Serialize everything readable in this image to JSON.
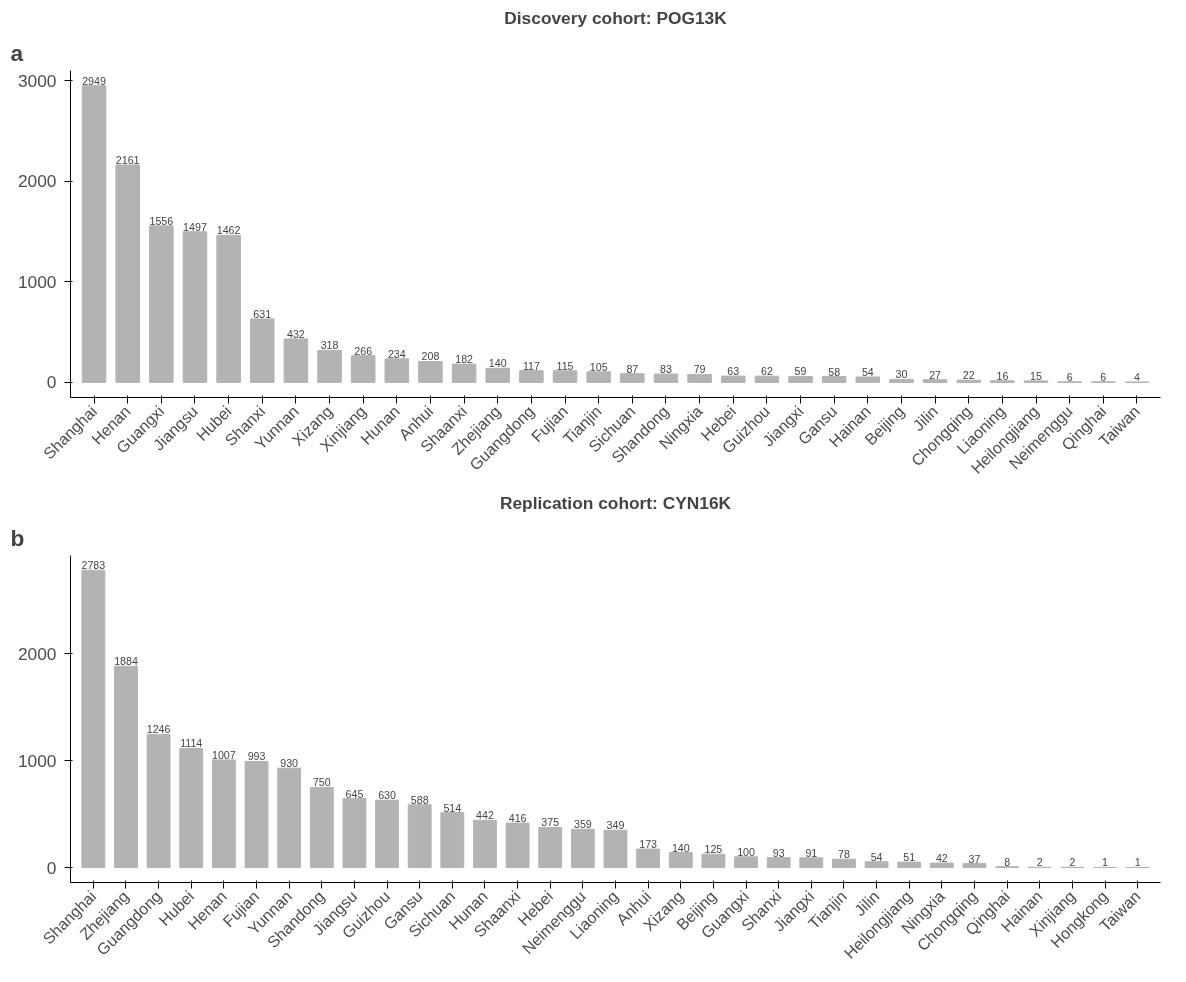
{
  "chart_data": [
    {
      "type": "bar",
      "title": "Discovery cohort: POG13K",
      "annotations": [
        "a"
      ],
      "categories": [
        "Shanghai",
        "Henan",
        "Guangxi",
        "Jiangsu",
        "Hubei",
        "Shanxi",
        "Yunnan",
        "Xizang",
        "Xinjiang",
        "Hunan",
        "Anhui",
        "Shaanxi",
        "Zhejiang",
        "Guangdong",
        "Fujian",
        "Tianjin",
        "Sichuan",
        "Shandong",
        "Ningxia",
        "Hebei",
        "Guizhou",
        "Jiangxi",
        "Gansu",
        "Hainan",
        "Beijing",
        "Jilin",
        "Chongqing",
        "Liaoning",
        "Heilongjiang",
        "Neimenggu",
        "Qinghai",
        "Taiwan"
      ],
      "values": [
        2949,
        2161,
        1556,
        1497,
        1462,
        631,
        432,
        318,
        266,
        234,
        208,
        182,
        140,
        117,
        115,
        105,
        87,
        83,
        79,
        63,
        62,
        59,
        58,
        54,
        30,
        27,
        22,
        16,
        15,
        6,
        6,
        4
      ],
      "color": "#b3b3b3",
      "ylim": [
        -150,
        3100
      ],
      "yticks": [
        0,
        1000,
        2000,
        3000
      ],
      "data_labels": true
    },
    {
      "type": "bar",
      "title": "Replication cohort: CYN16K",
      "annotations": [
        "b"
      ],
      "categories": [
        "Shanghai",
        "Zhejiang",
        "Guangdong",
        "Hubei",
        "Henan",
        "Fujian",
        "Yunnan",
        "Shandong",
        "Jiangsu",
        "Guizhou",
        "Gansu",
        "Sichuan",
        "Hunan",
        "Shaanxi",
        "Hebei",
        "Neimenggu",
        "Liaoning",
        "Anhui",
        "Xizang",
        "Beijing",
        "Guangxi",
        "Shanxi",
        "Jiangxi",
        "Tianjin",
        "Jilin",
        "Heilongjiang",
        "Ningxia",
        "Chongqing",
        "Qinghai",
        "Hainan",
        "Xinjiang",
        "Hongkong",
        "Taiwan"
      ],
      "values": [
        2783,
        1884,
        1246,
        1114,
        1007,
        993,
        930,
        750,
        645,
        630,
        588,
        514,
        442,
        416,
        375,
        359,
        349,
        173,
        140,
        125,
        100,
        93,
        91,
        78,
        54,
        51,
        42,
        37,
        8,
        2,
        2,
        1,
        1
      ],
      "color": "#b3b3b3",
      "ylim": [
        -140,
        2920
      ],
      "yticks": [
        0,
        1000,
        2000
      ],
      "data_labels": true
    }
  ]
}
